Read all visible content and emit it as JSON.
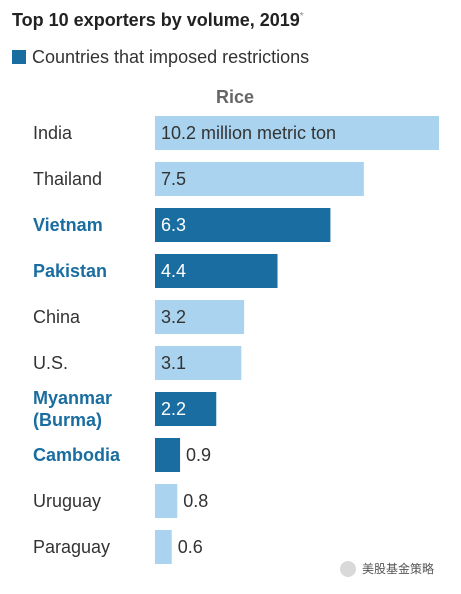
{
  "title": "Top 10 exporters by volume, 2019",
  "title_note": "*",
  "legend": {
    "label": "Countries that imposed restrictions",
    "color": "#1a6da0"
  },
  "colors": {
    "restricted": "#1a6da0",
    "unrestricted": "#a9d3ee",
    "label_restricted": "#1a6da0",
    "label_unrestricted": "#333333"
  },
  "watermark": "美股基金策略",
  "chart_data": {
    "type": "bar",
    "orientation": "horizontal",
    "title": "Top 10 exporters by volume, 2019",
    "series_header": "Rice",
    "unit_label": "million metric ton",
    "xlim": [
      0,
      10.2
    ],
    "grid": false,
    "legend_position": "top-left",
    "categories": [
      "India",
      "Thailand",
      "Vietnam",
      "Pakistan",
      "China",
      "U.S.",
      "Myanmar\n(Burma)",
      "Cambodia",
      "Uruguay",
      "Paraguay"
    ],
    "values": [
      10.2,
      7.5,
      6.3,
      4.4,
      3.2,
      3.1,
      2.2,
      0.9,
      0.8,
      0.6
    ],
    "value_labels": [
      "10.2 million metric ton",
      "7.5",
      "6.3",
      "4.4",
      "3.2",
      "3.1",
      "2.2",
      "0.9",
      "0.8",
      "0.6"
    ],
    "restricted": [
      false,
      false,
      true,
      true,
      false,
      false,
      true,
      true,
      false,
      false
    ]
  }
}
